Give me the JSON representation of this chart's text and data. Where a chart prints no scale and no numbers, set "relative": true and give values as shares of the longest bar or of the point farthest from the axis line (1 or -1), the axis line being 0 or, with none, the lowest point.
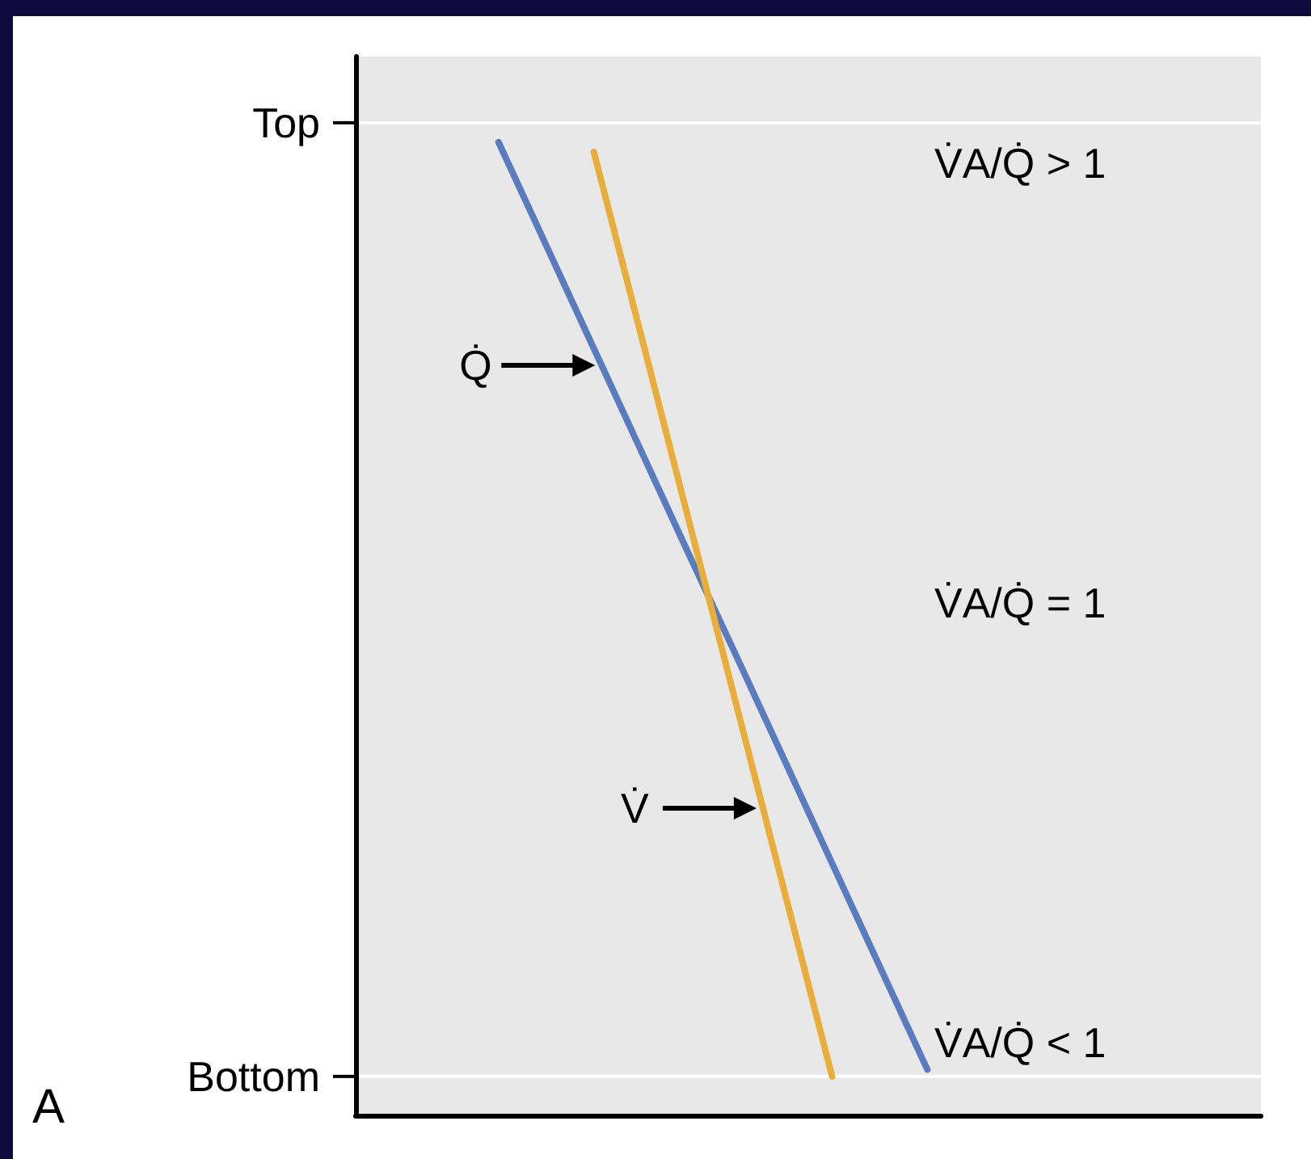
{
  "chart_data": {
    "type": "line",
    "relative": true,
    "categories": [
      null,
      null,
      null,
      null,
      null,
      null,
      null,
      null,
      null,
      null,
      null,
      null,
      null,
      null,
      null,
      null,
      null,
      null,
      null,
      null
    ],
    "marker": "none",
    "line_style": "solid",
    "ref_lines": [
      {
        "axis": "y",
        "value": 1.02,
        "label": "Top",
        "color": "#ffffff"
      },
      {
        "axis": "y",
        "value": 0.04,
        "label": "Bottom",
        "color": "#ffffff"
      }
    ],
    "series": [
      {
        "color": "#5b7bbf",
        "values": [
          null,
          null,
          null,
          1,
          0.894,
          0.788,
          0.682,
          0.576,
          0.471,
          0.365,
          0.259,
          0.153,
          0.047,
          null,
          null,
          null,
          null,
          null,
          null,
          null
        ]
      },
      {
        "color": "#e8ad3a",
        "values": [
          null,
          null,
          null,
          null,
          null,
          0.99,
          0.8,
          0.61,
          0.42,
          0.23,
          0.04,
          null,
          null,
          null,
          null,
          null,
          null,
          null,
          null,
          null
        ]
      }
    ],
    "annotations": [
      "V̇A/Q̇ > 1",
      "V̇A/Q̇ = 1",
      "V̇A/Q̇ < 1",
      "A",
      "Q̇",
      "V̇"
    ]
  }
}
